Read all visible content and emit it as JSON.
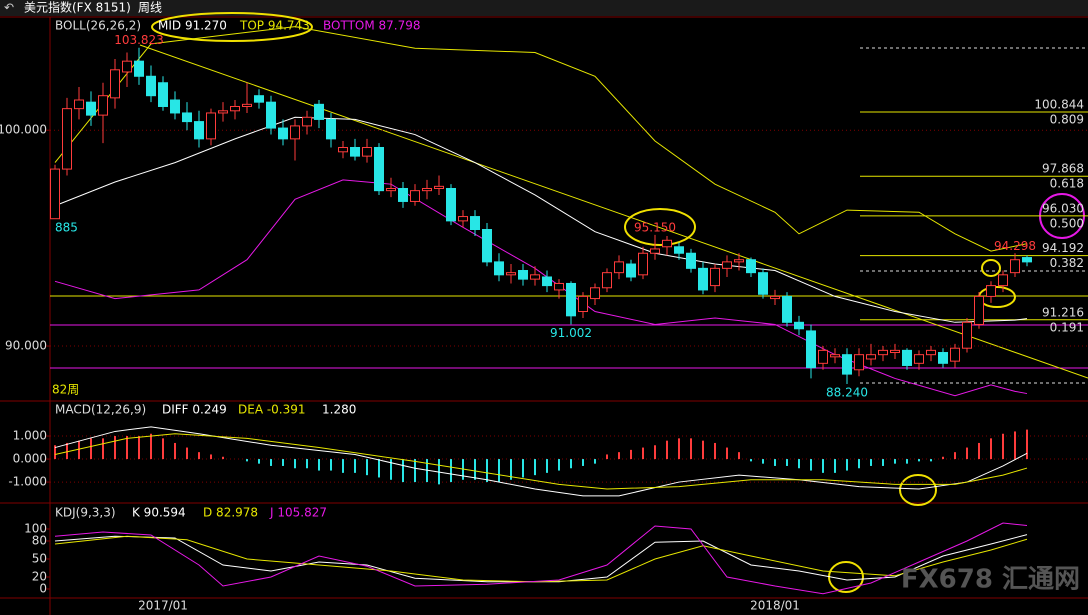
{
  "header": {
    "title": "美元指数(FX 8151)",
    "period": "周线"
  },
  "watermark": "FX678 汇通网",
  "chart_data": [
    {
      "type": "candlestick",
      "title": "BOLL(26,26,2)",
      "note": "82周",
      "ylim": [
        87.5,
        105.2
      ],
      "yticks": [
        {
          "value": 100,
          "label": "100.000"
        },
        {
          "value": 90,
          "label": "90.000"
        }
      ],
      "categories": [
        null,
        null,
        null,
        null,
        null,
        null,
        null,
        null,
        null,
        "2017/01",
        null,
        null,
        null,
        null,
        null,
        null,
        null,
        null,
        null,
        null,
        null,
        null,
        null,
        null,
        null,
        null,
        null,
        null,
        null,
        null,
        null,
        null,
        null,
        null,
        null,
        null,
        null,
        null,
        null,
        null,
        null,
        null,
        null,
        null,
        null,
        null,
        null,
        null,
        null,
        null,
        null,
        null,
        null,
        null,
        null,
        null,
        null,
        null,
        null,
        null,
        "2018/01",
        null,
        null,
        null,
        null,
        null,
        null,
        null,
        null,
        null,
        null,
        null,
        null,
        null,
        null,
        null,
        null,
        null,
        null,
        null,
        null,
        null
      ],
      "ohlc": [
        [
          95.9,
          98.4,
          95.885,
          98.2
        ],
        [
          98.2,
          101.5,
          97.9,
          101.0
        ],
        [
          101.0,
          102.0,
          100.5,
          101.4
        ],
        [
          101.3,
          101.8,
          100.2,
          100.7
        ],
        [
          100.7,
          102.2,
          99.4,
          101.6
        ],
        [
          101.5,
          103.3,
          101.0,
          102.8
        ],
        [
          102.7,
          103.6,
          102.0,
          103.2
        ],
        [
          103.2,
          103.823,
          102.1,
          102.5
        ],
        [
          102.5,
          103.0,
          101.3,
          101.6
        ],
        [
          102.2,
          102.5,
          100.9,
          101.1
        ],
        [
          101.4,
          101.8,
          100.5,
          100.8
        ],
        [
          100.8,
          101.3,
          100.0,
          100.4
        ],
        [
          100.4,
          100.9,
          99.2,
          99.6
        ],
        [
          99.6,
          101.0,
          99.3,
          100.8
        ],
        [
          100.8,
          101.3,
          100.4,
          100.9
        ],
        [
          100.9,
          101.4,
          100.5,
          101.1
        ],
        [
          101.1,
          102.2,
          100.8,
          101.2
        ],
        [
          101.6,
          101.9,
          101.0,
          101.3
        ],
        [
          101.3,
          101.6,
          99.8,
          100.1
        ],
        [
          100.1,
          100.5,
          99.3,
          99.6
        ],
        [
          99.6,
          100.5,
          98.6,
          100.2
        ],
        [
          100.2,
          100.9,
          99.8,
          100.6
        ],
        [
          101.2,
          101.4,
          100.1,
          100.5
        ],
        [
          100.5,
          100.8,
          99.2,
          99.6
        ],
        [
          99.0,
          99.5,
          98.7,
          99.2
        ],
        [
          99.2,
          99.6,
          98.6,
          98.8
        ],
        [
          98.8,
          99.6,
          98.5,
          99.2
        ],
        [
          99.2,
          99.4,
          97.0,
          97.2
        ],
        [
          97.2,
          97.8,
          96.9,
          97.3
        ],
        [
          97.3,
          97.6,
          96.4,
          96.7
        ],
        [
          96.7,
          97.5,
          96.5,
          97.2
        ],
        [
          97.2,
          97.7,
          96.8,
          97.3
        ],
        [
          97.3,
          97.9,
          97.0,
          97.4
        ],
        [
          97.3,
          97.5,
          95.6,
          95.8
        ],
        [
          95.8,
          96.3,
          95.5,
          96.0
        ],
        [
          96.0,
          96.3,
          95.1,
          95.4
        ],
        [
          95.4,
          95.7,
          93.7,
          93.9
        ],
        [
          93.9,
          94.3,
          93.0,
          93.3
        ],
        [
          93.3,
          93.8,
          92.9,
          93.4
        ],
        [
          93.5,
          93.8,
          92.8,
          93.1
        ],
        [
          93.1,
          93.7,
          92.8,
          93.3
        ],
        [
          93.2,
          93.5,
          92.5,
          92.8
        ],
        [
          92.6,
          93.1,
          92.2,
          92.9
        ],
        [
          92.9,
          93.0,
          91.002,
          91.4
        ],
        [
          91.6,
          92.5,
          91.3,
          92.3
        ],
        [
          92.2,
          92.9,
          91.9,
          92.7
        ],
        [
          92.7,
          93.6,
          92.5,
          93.4
        ],
        [
          93.4,
          94.2,
          93.1,
          93.9
        ],
        [
          93.8,
          94.0,
          93.0,
          93.2
        ],
        [
          93.3,
          94.6,
          93.1,
          94.3
        ],
        [
          94.3,
          95.15,
          94.0,
          94.5
        ],
        [
          94.6,
          95.1,
          94.2,
          94.9
        ],
        [
          94.6,
          94.8,
          94.0,
          94.3
        ],
        [
          94.3,
          94.5,
          93.4,
          93.6
        ],
        [
          93.6,
          93.9,
          92.4,
          92.6
        ],
        [
          92.8,
          93.8,
          92.5,
          93.6
        ],
        [
          93.6,
          94.2,
          93.2,
          93.9
        ],
        [
          93.9,
          94.3,
          93.5,
          94.0
        ],
        [
          94.0,
          94.1,
          93.2,
          93.4
        ],
        [
          93.4,
          93.6,
          92.2,
          92.4
        ],
        [
          92.2,
          92.6,
          91.9,
          92.3
        ],
        [
          92.3,
          92.5,
          90.9,
          91.1
        ],
        [
          91.1,
          91.4,
          90.5,
          90.8
        ],
        [
          90.7,
          91.0,
          88.5,
          89.0
        ],
        [
          89.2,
          90.0,
          88.9,
          89.8
        ],
        [
          89.5,
          89.9,
          89.2,
          89.6
        ],
        [
          89.6,
          89.9,
          88.24,
          88.7
        ],
        [
          88.9,
          89.9,
          88.6,
          89.6
        ],
        [
          89.4,
          90.1,
          89.1,
          89.6
        ],
        [
          89.6,
          90.0,
          89.3,
          89.8
        ],
        [
          89.7,
          90.1,
          89.4,
          89.8
        ],
        [
          89.8,
          89.9,
          88.9,
          89.1
        ],
        [
          89.2,
          89.8,
          88.9,
          89.6
        ],
        [
          89.6,
          90.0,
          89.3,
          89.8
        ],
        [
          89.7,
          89.9,
          89.0,
          89.2
        ],
        [
          89.3,
          90.1,
          89.0,
          89.9
        ],
        [
          89.9,
          91.3,
          89.7,
          91.1
        ],
        [
          91.0,
          92.5,
          90.8,
          92.3
        ],
        [
          92.3,
          93.0,
          92.0,
          92.8
        ],
        [
          92.8,
          93.5,
          92.5,
          93.3
        ],
        [
          93.4,
          94.298,
          93.2,
          94.0
        ],
        [
          94.1,
          94.2,
          93.7,
          93.9
        ]
      ],
      "up_color": "#ff3c3c",
      "down_color": "#28e6e6",
      "annotations": [
        {
          "label": "103.823",
          "value": 103.823,
          "color": "#ff3c3c"
        },
        {
          "label": "885",
          "value": 95.885,
          "color": "#28e6e6"
        },
        {
          "label": "91.002",
          "value": 91.002,
          "color": "#28e6e6"
        },
        {
          "label": "95.150",
          "value": 95.15,
          "color": "#ff3c3c"
        },
        {
          "label": "88.240",
          "value": 88.24,
          "color": "#28e6e6"
        },
        {
          "label": "94.298",
          "value": 94.298,
          "color": "#ff3c3c"
        }
      ],
      "levels": [
        {
          "value": 100.844,
          "ratio": 0.809
        },
        {
          "value": 97.868,
          "ratio": 0.618
        },
        {
          "value": {
            "value": 96.03,
            "label": "96.030"
          },
          "ratio": {
            "value": 0.5,
            "label": "0.500"
          }
        },
        {
          "value": 94.192,
          "ratio": 0.382
        },
        {
          "value": 91.216,
          "ratio": 0.191
        }
      ],
      "series": [
        {
          "name": "MID 91.270",
          "color": "#ffffff",
          "x": [
            0,
            5,
            10,
            15,
            20,
            25,
            30,
            35,
            40,
            45,
            50,
            55,
            60,
            65,
            70,
            75,
            80,
            81
          ],
          "values": [
            96.5,
            97.6,
            98.5,
            99.6,
            100.6,
            100.5,
            99.8,
            98.5,
            97.0,
            95.3,
            94.3,
            93.8,
            93.5,
            92.3,
            91.6,
            91.1,
            91.2,
            91.27
          ]
        },
        {
          "name": "TOP 94.743",
          "color": "#e6e600",
          "x": [
            0,
            8,
            20,
            30,
            40,
            45,
            50,
            55,
            60,
            62,
            66,
            72,
            75,
            78,
            81
          ],
          "values": [
            98.5,
            104.0,
            104.8,
            103.8,
            103.6,
            102.5,
            99.5,
            97.5,
            96.2,
            95.2,
            96.3,
            96.2,
            95.2,
            94.4,
            94.743
          ]
        },
        {
          "name": "BOTTOM 87.798",
          "color": "#e619e6",
          "x": [
            0,
            5,
            12,
            16,
            20,
            24,
            28,
            34,
            40,
            45,
            50,
            55,
            60,
            65,
            70,
            75,
            78,
            80,
            81
          ],
          "values": [
            93.0,
            92.2,
            92.6,
            94.0,
            96.8,
            97.7,
            97.5,
            95.5,
            93.6,
            91.6,
            91.0,
            91.3,
            91.0,
            89.6,
            88.5,
            87.7,
            88.2,
            87.9,
            87.798
          ]
        }
      ]
    },
    {
      "type": "macd",
      "title": "MACD(12,26,9)",
      "ylim": [
        -1.91,
        2.48
      ],
      "yticks": [
        {
          "value": 1,
          "label": "1.000"
        },
        {
          "value": 0,
          "label": "0.000"
        },
        {
          "value": -1,
          "label": "-1.000"
        }
      ],
      "histogram": {
        "name": "1.280",
        "up_color": "#ff3c3c",
        "down_color": "#28e6e6",
        "values": [
          0.6,
          0.7,
          0.8,
          0.9,
          0.9,
          1.0,
          1.0,
          1.0,
          1.1,
          0.9,
          0.7,
          0.5,
          0.3,
          0.2,
          0.1,
          0.0,
          -0.1,
          -0.2,
          -0.3,
          -0.3,
          -0.4,
          -0.4,
          -0.5,
          -0.5,
          -0.6,
          -0.6,
          -0.7,
          -0.8,
          -0.9,
          -1.0,
          -1.0,
          -1.0,
          -1.1,
          -1.0,
          -0.9,
          -0.9,
          -1.0,
          -1.0,
          -0.9,
          -0.8,
          -0.7,
          -0.6,
          -0.5,
          -0.4,
          -0.3,
          -0.2,
          0.2,
          0.3,
          0.4,
          0.5,
          0.6,
          0.8,
          0.9,
          0.9,
          0.8,
          0.7,
          0.5,
          0.3,
          -0.1,
          -0.2,
          -0.3,
          -0.3,
          -0.4,
          -0.5,
          -0.6,
          -0.6,
          -0.5,
          -0.4,
          -0.3,
          -0.3,
          -0.2,
          -0.2,
          -0.1,
          -0.1,
          0.1,
          0.3,
          0.5,
          0.7,
          0.9,
          1.1,
          1.2,
          1.28
        ]
      },
      "series": [
        {
          "name": "DIFF 0.249",
          "color": "#ffffff",
          "x": [
            0,
            5,
            8,
            12,
            18,
            25,
            30,
            36,
            40,
            44,
            47,
            52,
            57,
            62,
            67,
            72,
            76,
            79,
            81
          ],
          "values": [
            0.5,
            1.2,
            1.4,
            1.1,
            0.6,
            0.2,
            -0.4,
            -0.9,
            -1.3,
            -1.6,
            -1.6,
            -1.0,
            -0.7,
            -0.9,
            -1.2,
            -1.3,
            -1.0,
            -0.3,
            0.249
          ]
        },
        {
          "name": "DEA -0.391",
          "color": "#e6e600",
          "x": [
            0,
            6,
            10,
            16,
            22,
            30,
            36,
            42,
            46,
            52,
            58,
            64,
            70,
            75,
            79,
            81
          ],
          "values": [
            0.2,
            0.9,
            1.1,
            0.9,
            0.5,
            -0.1,
            -0.6,
            -1.1,
            -1.3,
            -1.2,
            -0.9,
            -0.9,
            -1.1,
            -1.1,
            -0.7,
            -0.391
          ]
        }
      ]
    },
    {
      "type": "line",
      "title": "KDJ(9,3,3)",
      "ylim": [
        -15,
        140
      ],
      "yticks": [
        100,
        80,
        50,
        20,
        0
      ],
      "series": [
        {
          "name": "K 90.594",
          "color": "#ffffff",
          "x": [
            0,
            5,
            10,
            14,
            18,
            22,
            26,
            30,
            36,
            42,
            46,
            50,
            54,
            58,
            62,
            66,
            70,
            74,
            78,
            81
          ],
          "values": [
            80,
            88,
            85,
            40,
            30,
            45,
            40,
            18,
            12,
            12,
            20,
            78,
            80,
            40,
            30,
            15,
            20,
            55,
            75,
            90.594
          ]
        },
        {
          "name": "D 82.978",
          "color": "#e6e600",
          "x": [
            0,
            6,
            11,
            16,
            22,
            28,
            34,
            40,
            46,
            50,
            54,
            58,
            64,
            70,
            74,
            78,
            81
          ],
          "values": [
            75,
            88,
            82,
            50,
            40,
            30,
            15,
            12,
            15,
            50,
            72,
            55,
            30,
            22,
            45,
            65,
            82.978
          ]
        },
        {
          "name": "J 105.827",
          "color": "#e619e6",
          "x": [
            0,
            4,
            8,
            12,
            14,
            18,
            22,
            26,
            30,
            36,
            42,
            46,
            50,
            53,
            56,
            60,
            64,
            68,
            72,
            76,
            79,
            81
          ],
          "values": [
            88,
            95,
            90,
            40,
            5,
            20,
            55,
            38,
            5,
            8,
            15,
            40,
            105,
            100,
            20,
            5,
            -8,
            10,
            45,
            80,
            110,
            105.827
          ]
        }
      ]
    }
  ]
}
